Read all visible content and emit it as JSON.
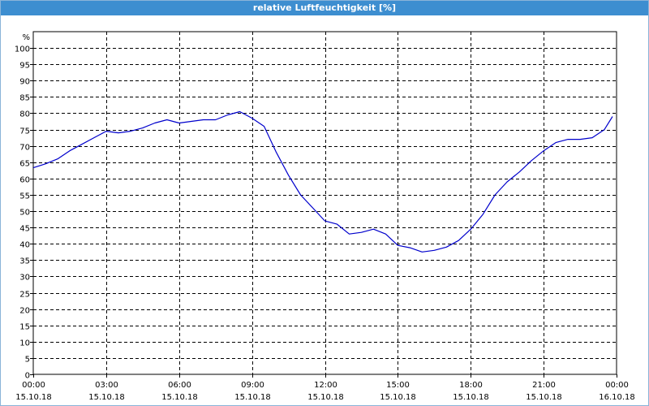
{
  "window": {
    "title": "relative Luftfeuchtigkeit [%]"
  },
  "chart_data": {
    "type": "line",
    "title": "relative Luftfeuchtigkeit [%]",
    "ylabel": "%",
    "xlabel": "",
    "ylim": [
      0,
      105
    ],
    "xlim": [
      "15.10.18 00:00",
      "16.10.18 00:00"
    ],
    "y_ticks": [
      0,
      5,
      10,
      15,
      20,
      25,
      30,
      35,
      40,
      45,
      50,
      55,
      60,
      65,
      70,
      75,
      80,
      85,
      90,
      95,
      100
    ],
    "x_ticks": [
      {
        "time": "00:00",
        "date": "15.10.18"
      },
      {
        "time": "03:00",
        "date": "15.10.18"
      },
      {
        "time": "06:00",
        "date": "15.10.18"
      },
      {
        "time": "09:00",
        "date": "15.10.18"
      },
      {
        "time": "12:00",
        "date": "15.10.18"
      },
      {
        "time": "15:00",
        "date": "15.10.18"
      },
      {
        "time": "18:00",
        "date": "15.10.18"
      },
      {
        "time": "21:00",
        "date": "15.10.18"
      },
      {
        "time": "00:00",
        "date": "16.10.18"
      }
    ],
    "grid": true,
    "legend": "none",
    "line_color": "#0000cc",
    "series": [
      {
        "x": [
          "00:00",
          "00:30",
          "01:00",
          "01:30",
          "02:00",
          "02:30",
          "03:00",
          "03:30",
          "04:00",
          "04:30",
          "05:00",
          "05:30",
          "06:00",
          "06:30",
          "07:00",
          "07:30",
          "08:00",
          "08:30",
          "09:00",
          "09:30",
          "10:00",
          "10:30",
          "11:00",
          "11:30",
          "12:00",
          "12:30",
          "13:00",
          "13:30",
          "14:00",
          "14:30",
          "15:00",
          "15:30",
          "16:00",
          "16:30",
          "17:00",
          "17:30",
          "18:00",
          "18:30",
          "19:00",
          "19:30",
          "20:00",
          "20:30",
          "21:00",
          "21:30",
          "22:00",
          "22:30",
          "23:00",
          "23:30",
          "23:50"
        ],
        "values": [
          63.3,
          64.5,
          66.0,
          68.5,
          70.5,
          72.5,
          74.5,
          74.0,
          74.5,
          75.5,
          77.0,
          78.0,
          77.0,
          77.5,
          78.0,
          78.0,
          79.5,
          80.5,
          78.5,
          76.0,
          68.0,
          61.0,
          55.0,
          51.0,
          47.0,
          46.0,
          43.0,
          43.5,
          44.5,
          43.0,
          39.5,
          38.8,
          37.5,
          38.0,
          39.0,
          41.0,
          44.5,
          49.0,
          55.0,
          59.0,
          62.0,
          65.5,
          68.5,
          71.0,
          72.0,
          72.0,
          72.5,
          75.0,
          79.0
        ]
      }
    ]
  }
}
